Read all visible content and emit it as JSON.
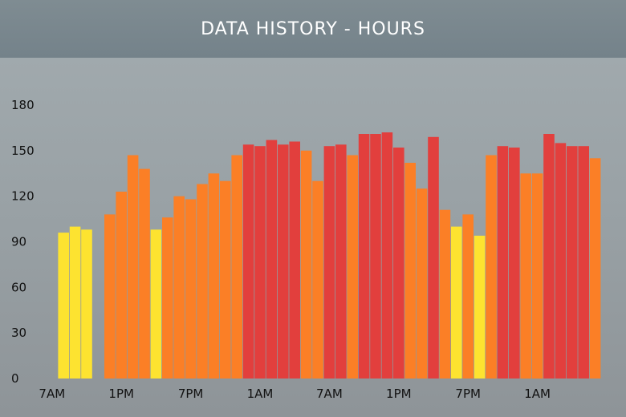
{
  "header": {
    "title": "DATA HISTORY - HOURS"
  },
  "colors": {
    "yellow": "#fde330",
    "orange": "#fb7f26",
    "red": "#e23f3d",
    "header_bg": "#7a878d"
  },
  "chart_data": {
    "type": "bar",
    "title": "DATA HISTORY - HOURS",
    "xlabel": "",
    "ylabel": "",
    "ylim": [
      0,
      180
    ],
    "yticks": [
      0,
      30,
      60,
      90,
      120,
      150,
      180
    ],
    "xtick_labels": [
      "7AM",
      "1PM",
      "7PM",
      "1AM",
      "7AM",
      "1PM",
      "7PM",
      "1AM"
    ],
    "grid": false,
    "legend": "none",
    "values": [
      null,
      96,
      100,
      98,
      null,
      108,
      123,
      147,
      138,
      98,
      106,
      120,
      118,
      128,
      135,
      130,
      147,
      154,
      153,
      157,
      154,
      156,
      150,
      130,
      153,
      154,
      147,
      161,
      161,
      162,
      152,
      142,
      125,
      159,
      111,
      100,
      108,
      94,
      147,
      153,
      152,
      135,
      135,
      161,
      155,
      153,
      153,
      145
    ],
    "bar_colors": [
      "",
      "yellow",
      "yellow",
      "yellow",
      "",
      "orange",
      "orange",
      "orange",
      "orange",
      "yellow",
      "orange",
      "orange",
      "orange",
      "orange",
      "orange",
      "orange",
      "orange",
      "red",
      "red",
      "red",
      "red",
      "red",
      "orange",
      "orange",
      "red",
      "red",
      "orange",
      "red",
      "red",
      "red",
      "red",
      "orange",
      "orange",
      "red",
      "orange",
      "yellow",
      "orange",
      "yellow",
      "orange",
      "red",
      "red",
      "orange",
      "orange",
      "red",
      "red",
      "red",
      "red",
      "orange"
    ]
  }
}
